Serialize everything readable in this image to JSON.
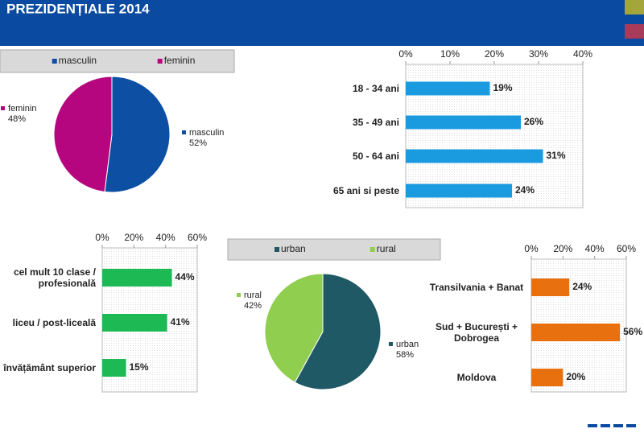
{
  "header": {
    "title": "PREZIDENȚIALE 2014"
  },
  "chart_data": [
    {
      "type": "pie",
      "categories": [
        "masculin",
        "feminin"
      ],
      "values": [
        52,
        48
      ],
      "value_labels": [
        "52%",
        "48%"
      ],
      "colors": [
        "#0d4fa3",
        "#b5067f"
      ],
      "legend": "top"
    },
    {
      "type": "bar",
      "orientation": "horizontal",
      "categories": [
        "18 - 34 ani",
        "35 - 49 ani",
        "50 - 64 ani",
        "65 ani si peste"
      ],
      "values": [
        19,
        26,
        31,
        24
      ],
      "value_labels": [
        "19%",
        "26%",
        "31%",
        "24%"
      ],
      "color": "#1a9be0",
      "xlim": [
        0,
        40
      ],
      "xticks": [
        {
          "value": 0,
          "label": "0%"
        },
        {
          "value": 10,
          "label": "10%"
        },
        {
          "value": 20,
          "label": "20%"
        },
        {
          "value": 30,
          "label": "30%"
        },
        {
          "value": 40,
          "label": "40%"
        }
      ]
    },
    {
      "type": "bar",
      "orientation": "horizontal",
      "categories": [
        "cel mult 10 clase / profesională",
        "liceu / post-liceală",
        "învățământ superior"
      ],
      "values": [
        44,
        41,
        15
      ],
      "value_labels": [
        "44%",
        "41%",
        "15%"
      ],
      "color": "#1db954",
      "xlim": [
        0,
        60
      ],
      "xticks": [
        {
          "value": 0,
          "label": "0%"
        },
        {
          "value": 20,
          "label": "20%"
        },
        {
          "value": 40,
          "label": "40%"
        },
        {
          "value": 60,
          "label": "60%"
        }
      ]
    },
    {
      "type": "pie",
      "categories": [
        "urban",
        "rural"
      ],
      "values": [
        58,
        42
      ],
      "value_labels": [
        "58%",
        "42%"
      ],
      "colors": [
        "#205966",
        "#8fce4f"
      ],
      "legend": "top"
    },
    {
      "type": "bar",
      "orientation": "horizontal",
      "categories": [
        "Transilvania + Banat",
        "Sud + București + Dobrogea",
        "Moldova"
      ],
      "values": [
        24,
        56,
        20
      ],
      "value_labels": [
        "24%",
        "56%",
        "20%"
      ],
      "color": "#e8700f",
      "xlim": [
        0,
        60
      ],
      "xticks": [
        {
          "value": 0,
          "label": "0%"
        },
        {
          "value": 20,
          "label": "20%"
        },
        {
          "value": 40,
          "label": "40%"
        },
        {
          "value": 60,
          "label": "60%"
        }
      ]
    }
  ]
}
